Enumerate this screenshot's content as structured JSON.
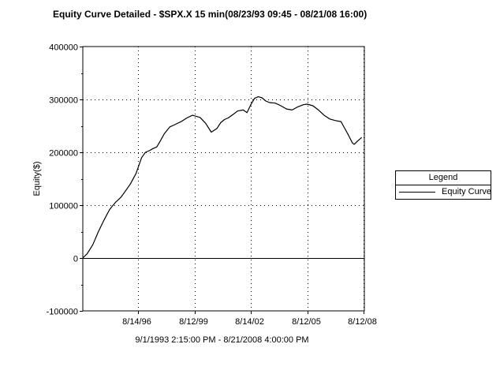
{
  "chart_data": {
    "type": "line",
    "title": "Equity Curve Detailed - $SPX.X 15 min(08/23/93 09:45 - 08/21/08 16:00)",
    "xlabel": "9/1/1993 2:15:00 PM - 8/21/2008 4:00:00 PM",
    "ylabel": "Equity($)",
    "xlim": [
      1993.67,
      2008.64
    ],
    "ylim": [
      -100000,
      400000
    ],
    "x_ticks": [
      {
        "x": 1996.62,
        "label": "8/14/96"
      },
      {
        "x": 1999.61,
        "label": "8/12/99"
      },
      {
        "x": 2002.62,
        "label": "8/14/02"
      },
      {
        "x": 2005.61,
        "label": "8/12/05"
      },
      {
        "x": 2008.61,
        "label": "8/12/08"
      }
    ],
    "y_ticks": [
      -100000,
      0,
      100000,
      200000,
      300000,
      400000
    ],
    "y_tick_labels": [
      "-100000",
      "0",
      "100000",
      "200000",
      "300000",
      "400000"
    ],
    "grid": true,
    "zero_line": true,
    "legend": {
      "title": "Legend",
      "position": "right"
    },
    "series": [
      {
        "name": "Equity Curve",
        "color": "#000000",
        "x": [
          1993.67,
          1993.9,
          1994.2,
          1994.5,
          1994.8,
          1995.1,
          1995.4,
          1995.7,
          1995.9,
          1996.2,
          1996.5,
          1996.8,
          1997.0,
          1997.2,
          1997.4,
          1997.6,
          1997.8,
          1998.0,
          1998.3,
          1998.6,
          1998.9,
          1999.2,
          1999.5,
          1999.9,
          2000.2,
          2000.5,
          2000.8,
          2001.0,
          2001.2,
          2001.4,
          2001.6,
          2001.9,
          2002.2,
          2002.4,
          2002.6,
          2002.8,
          2003.0,
          2003.2,
          2003.4,
          2003.6,
          2003.9,
          2004.2,
          2004.5,
          2004.8,
          2005.1,
          2005.4,
          2005.6,
          2005.9,
          2006.2,
          2006.5,
          2006.8,
          2007.1,
          2007.4,
          2007.6,
          2007.8,
          2008.0,
          2008.1,
          2008.3,
          2008.5
        ],
        "y": [
          0,
          8000,
          25000,
          50000,
          72000,
          92000,
          105000,
          115000,
          125000,
          140000,
          160000,
          190000,
          200000,
          203000,
          207000,
          210000,
          222000,
          235000,
          248000,
          253000,
          258000,
          265000,
          270000,
          266000,
          255000,
          238000,
          245000,
          256000,
          262000,
          265000,
          270000,
          278000,
          280000,
          275000,
          290000,
          302000,
          305000,
          303000,
          297000,
          294000,
          293000,
          288000,
          282000,
          280000,
          286000,
          290000,
          291000,
          288000,
          280000,
          270000,
          263000,
          260000,
          258000,
          245000,
          232000,
          218000,
          215000,
          222000,
          228000
        ]
      }
    ]
  }
}
